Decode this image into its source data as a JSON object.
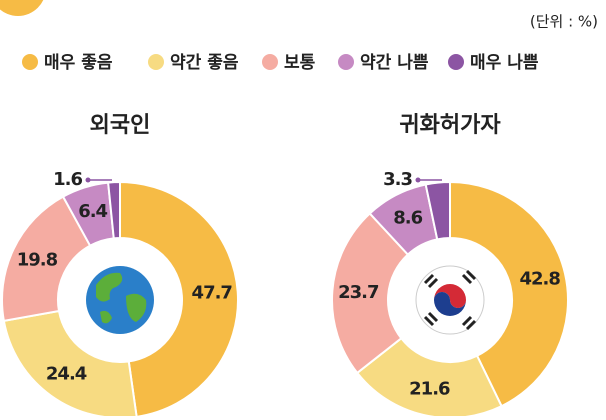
{
  "unit": "(단위 : %)",
  "chart_data": [
    {
      "type": "pie",
      "title": "외국인",
      "donut": true,
      "categories": [
        "매우 좋음",
        "약간 좋음",
        "보통",
        "약간 나쁨",
        "매우 나쁨"
      ],
      "values": [
        47.7,
        24.4,
        19.8,
        6.4,
        1.6
      ],
      "colors": [
        "#f6bb45",
        "#f7db82",
        "#f5aca2",
        "#c68ac3",
        "#8c55a3"
      ]
    },
    {
      "type": "pie",
      "title": "귀화허가자",
      "donut": true,
      "categories": [
        "매우 좋음",
        "약간 좋음",
        "보통",
        "약간 나쁨",
        "매우 나쁨"
      ],
      "values": [
        42.8,
        21.6,
        23.7,
        8.6,
        3.3
      ],
      "colors": [
        "#f6bb45",
        "#f7db82",
        "#f5aca2",
        "#c68ac3",
        "#8c55a3"
      ]
    }
  ]
}
